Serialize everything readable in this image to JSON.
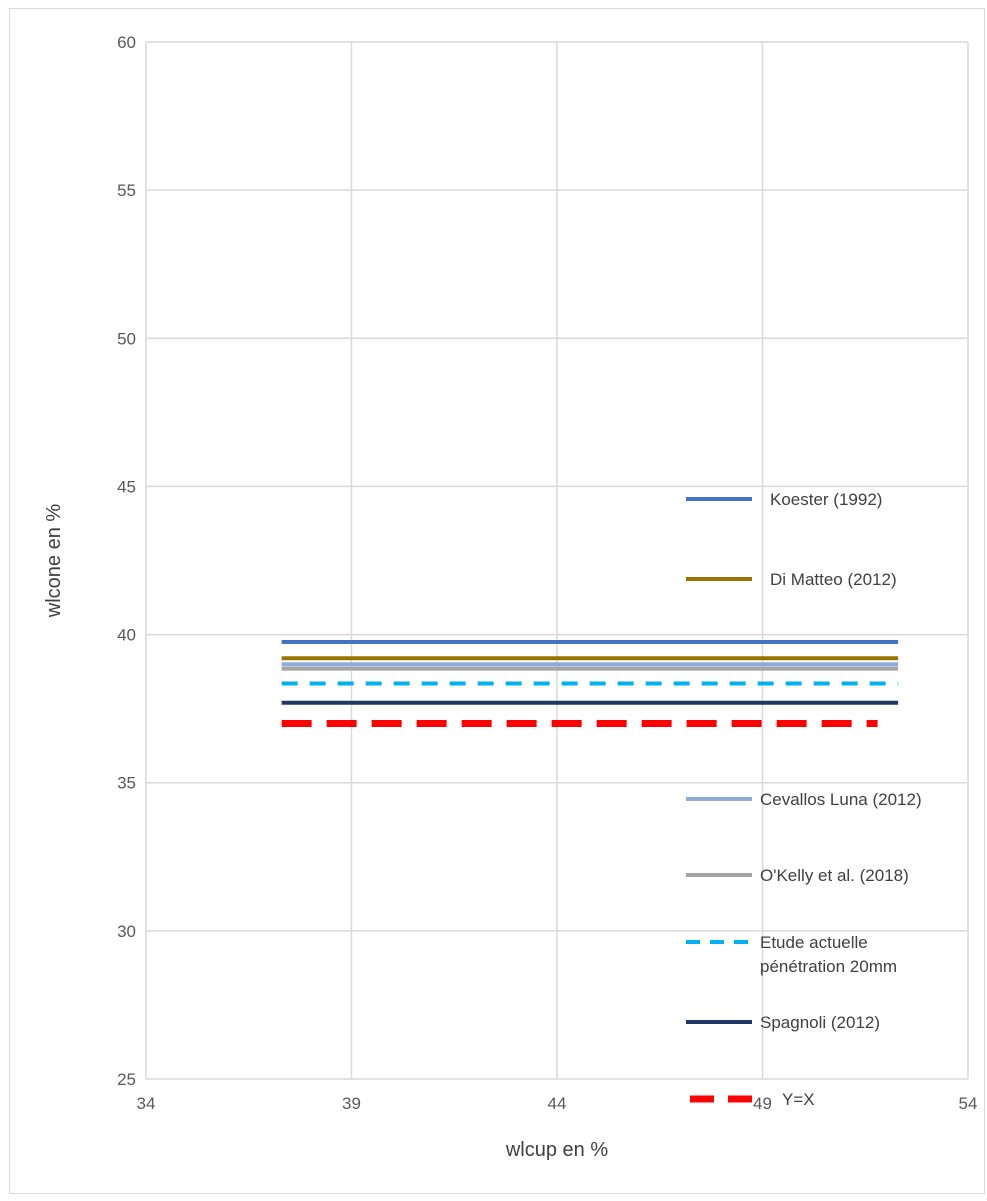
{
  "chart_data": {
    "type": "line",
    "xlabel": "wlcup en %",
    "ylabel": "wlcone en %",
    "xlim": [
      34,
      54
    ],
    "ylim": [
      25,
      60
    ],
    "x_ticks": [
      34,
      39,
      44,
      49,
      54
    ],
    "y_ticks": [
      25,
      30,
      35,
      40,
      45,
      50,
      55,
      60
    ],
    "grid": true,
    "series": [
      {
        "name": "Koester (1992)",
        "color": "#4472C4",
        "dash": "solid",
        "x": [
          37.3,
          52.3
        ],
        "y": [
          39.75,
          39.75
        ]
      },
      {
        "name": "Di Matteo (2012)",
        "color": "#997300",
        "dash": "solid",
        "x": [
          37.3,
          52.3
        ],
        "y": [
          39.2,
          39.2
        ]
      },
      {
        "name": "Cevallos Luna (2012)",
        "color": "#8FAADC",
        "dash": "solid",
        "x": [
          37.3,
          52.3
        ],
        "y": [
          39.0,
          39.0
        ]
      },
      {
        "name": "O'Kelly et al. (2018)",
        "color": "#A5A5A5",
        "dash": "solid",
        "x": [
          37.3,
          52.3
        ],
        "y": [
          38.85,
          38.85
        ]
      },
      {
        "name": "Etude actuelle pénétration 20mm",
        "legend_lines": [
          "Etude actuelle",
          "pénétration 20mm"
        ],
        "color": "#00B0F0",
        "dash": "dashed",
        "x": [
          37.3,
          52.3
        ],
        "y": [
          38.35,
          38.35
        ]
      },
      {
        "name": "Spagnoli (2012)",
        "color": "#203864",
        "dash": "solid",
        "x": [
          37.3,
          52.3
        ],
        "y": [
          37.7,
          37.7
        ]
      },
      {
        "name": "Y=X",
        "color": "#FF0000",
        "dash": "dashed-thick",
        "x": [
          37.3,
          51.8
        ],
        "y": [
          37.0,
          37.0
        ]
      }
    ],
    "legend": {
      "placement": "right"
    }
  }
}
